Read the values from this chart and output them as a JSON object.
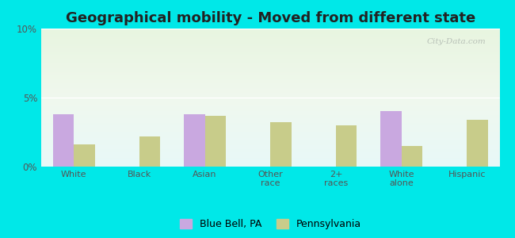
{
  "title": "Geographical mobility - Moved from different state",
  "categories": [
    "White",
    "Black",
    "Asian",
    "Other\nrace",
    "2+\nraces",
    "White\nalone",
    "Hispanic"
  ],
  "bluebell_values": [
    3.8,
    0,
    3.8,
    0,
    0,
    4.0,
    0
  ],
  "pennsylvania_values": [
    1.6,
    2.2,
    3.7,
    3.2,
    3.0,
    1.5,
    3.4
  ],
  "bluebell_color": "#c9a8e0",
  "pennsylvania_color": "#c8cc8a",
  "ylim": [
    0,
    10
  ],
  "yticks": [
    0,
    5,
    10
  ],
  "yticklabels": [
    "0%",
    "5%",
    "10%"
  ],
  "outer_bg": "#00e8e8",
  "legend_bluebell": "Blue Bell, PA",
  "legend_pennsylvania": "Pennsylvania",
  "title_fontsize": 13,
  "bar_width": 0.32
}
